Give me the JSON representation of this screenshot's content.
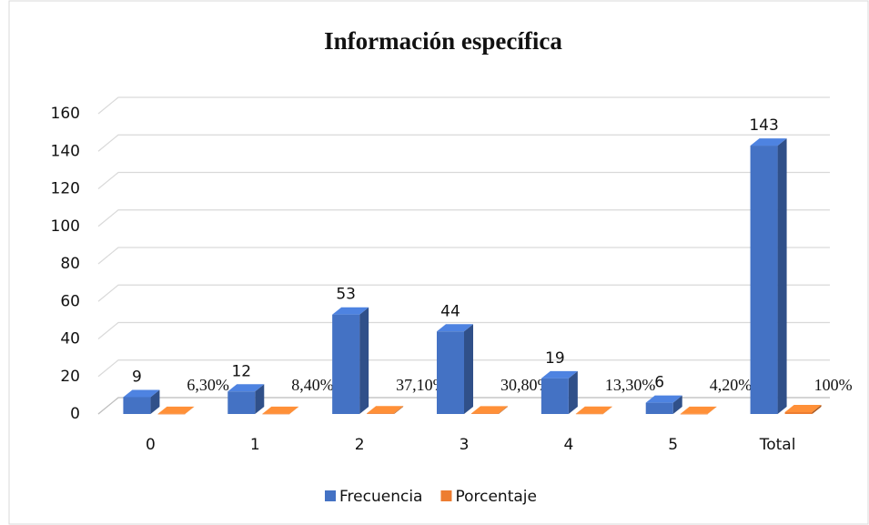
{
  "chart_data": {
    "type": "bar3d",
    "title": "Información específica",
    "categories": [
      "0",
      "1",
      "2",
      "3",
      "4",
      "5",
      "Total"
    ],
    "series": [
      {
        "name": "Frecuencia",
        "color": "#4472c4",
        "values": [
          9,
          12,
          53,
          44,
          19,
          6,
          143
        ]
      },
      {
        "name": "Porcentaje",
        "color": "#ed7d31",
        "values": [
          0.063,
          0.084,
          0.371,
          0.308,
          0.133,
          0.042,
          1
        ],
        "value_labels": [
          "6,30%",
          "8,40%",
          "37,10%",
          "30,80%",
          "13,30%",
          "4,20%",
          "100%"
        ]
      }
    ],
    "ylim": [
      0,
      160
    ],
    "yticks": [
      0,
      20,
      40,
      60,
      80,
      100,
      120,
      140,
      160
    ],
    "grid": true,
    "legend": "bottom"
  }
}
